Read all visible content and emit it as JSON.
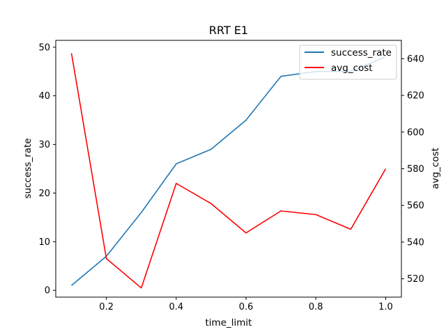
{
  "chart_data": {
    "type": "line",
    "title": "RRT E1",
    "xlabel": "time_limit",
    "ylabel": "success_rate",
    "y2label": "avg_cost",
    "x": [
      0.1,
      0.2,
      0.3,
      0.4,
      0.5,
      0.6,
      0.7,
      0.8,
      0.9,
      1.0
    ],
    "xlim": [
      0.055,
      1.045
    ],
    "ylim": [
      -1.4,
      51.4
    ],
    "y2lim": [
      510,
      650
    ],
    "xticks": [
      "0.2",
      "0.4",
      "0.6",
      "0.8",
      "1.0"
    ],
    "xtick_values": [
      0.2,
      0.4,
      0.6,
      0.8,
      1.0
    ],
    "yticks": [
      "0",
      "10",
      "20",
      "30",
      "40",
      "50"
    ],
    "ytick_values": [
      0,
      10,
      20,
      30,
      40,
      50
    ],
    "y2ticks": [
      "520",
      "540",
      "560",
      "580",
      "600",
      "620",
      "640"
    ],
    "y2tick_values": [
      520,
      540,
      560,
      580,
      600,
      620,
      640
    ],
    "series": [
      {
        "name": "success_rate",
        "axis": "left",
        "color": "#1f77b4",
        "values": [
          1,
          7,
          16,
          26,
          29,
          35,
          44,
          45,
          45,
          48
        ]
      },
      {
        "name": "avg_cost",
        "axis": "right",
        "color": "#ff0000",
        "values": [
          643,
          531,
          515,
          572,
          561,
          545,
          557,
          555,
          547,
          580
        ]
      }
    ],
    "legend_position": "top-right",
    "grid": false
  }
}
